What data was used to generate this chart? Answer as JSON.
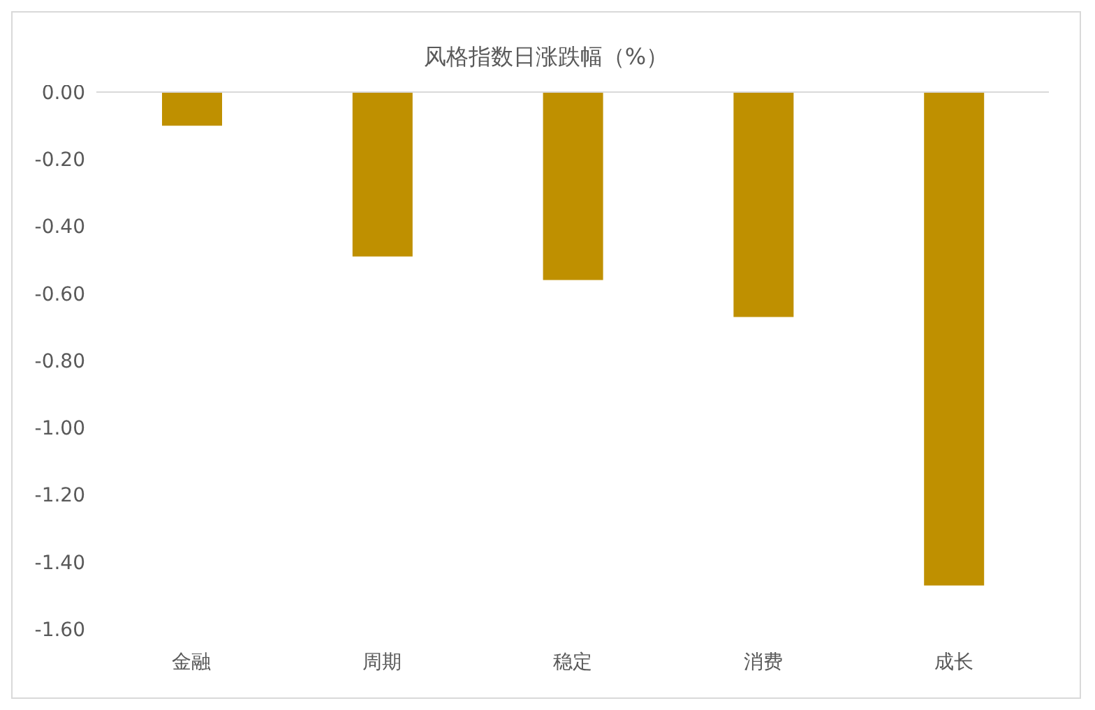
{
  "chart_data": {
    "type": "bar",
    "title": "风格指数日涨跌幅（%）",
    "categories": [
      "金融",
      "周期",
      "稳定",
      "消费",
      "成长"
    ],
    "values": [
      -0.1,
      -0.49,
      -0.56,
      -0.67,
      -1.47
    ],
    "color": "#bf9000",
    "ylim": [
      -1.6,
      0
    ],
    "yticks": [
      {
        "value": 0,
        "label": "0.00"
      },
      {
        "value": -0.2,
        "label": "-0.20"
      },
      {
        "value": -0.4,
        "label": "-0.40"
      },
      {
        "value": -0.6,
        "label": "-0.60"
      },
      {
        "value": -0.8,
        "label": "-0.80"
      },
      {
        "value": -1,
        "label": "-1.00"
      },
      {
        "value": -1.2,
        "label": "-1.20"
      },
      {
        "value": -1.4,
        "label": "-1.40"
      },
      {
        "value": -1.6,
        "label": "-1.60"
      }
    ],
    "grid": false,
    "legend": false
  }
}
